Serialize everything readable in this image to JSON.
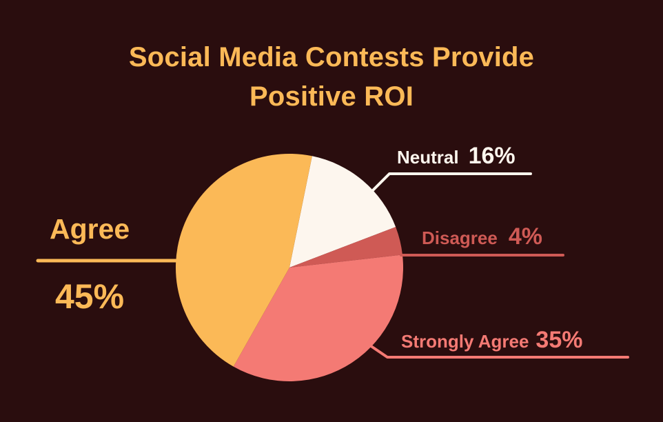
{
  "title": {
    "line1": "Social Media Contests Provide",
    "line2": "Positive ROI"
  },
  "colors": {
    "background": "#2a0d0e",
    "agree": "#fbb957",
    "neutral": "#fdf6ee",
    "disagree": "#cf5a55",
    "strongly_agree": "#f47a74"
  },
  "labels": {
    "agree": {
      "name": "Agree",
      "pct": "45%"
    },
    "neutral": {
      "name": "Neutral",
      "pct": "16%"
    },
    "disagree": {
      "name": "Disagree",
      "pct": "4%"
    },
    "strongly_agree": {
      "name": "Strongly Agree",
      "pct": "35%"
    }
  },
  "chart_data": {
    "type": "pie",
    "title": "Social Media Contests Provide Positive ROI",
    "categories": [
      "Agree",
      "Neutral",
      "Disagree",
      "Strongly Agree"
    ],
    "values": [
      45,
      16,
      4,
      35
    ],
    "unit": "%",
    "colors": [
      "#fbb957",
      "#fdf6ee",
      "#cf5a55",
      "#f47a74"
    ],
    "start_angle_deg": 11.5,
    "order_clockwise_from_start": [
      "Neutral",
      "Disagree",
      "Strongly Agree",
      "Agree"
    ],
    "legend": "none (direct labels with leader lines)"
  }
}
